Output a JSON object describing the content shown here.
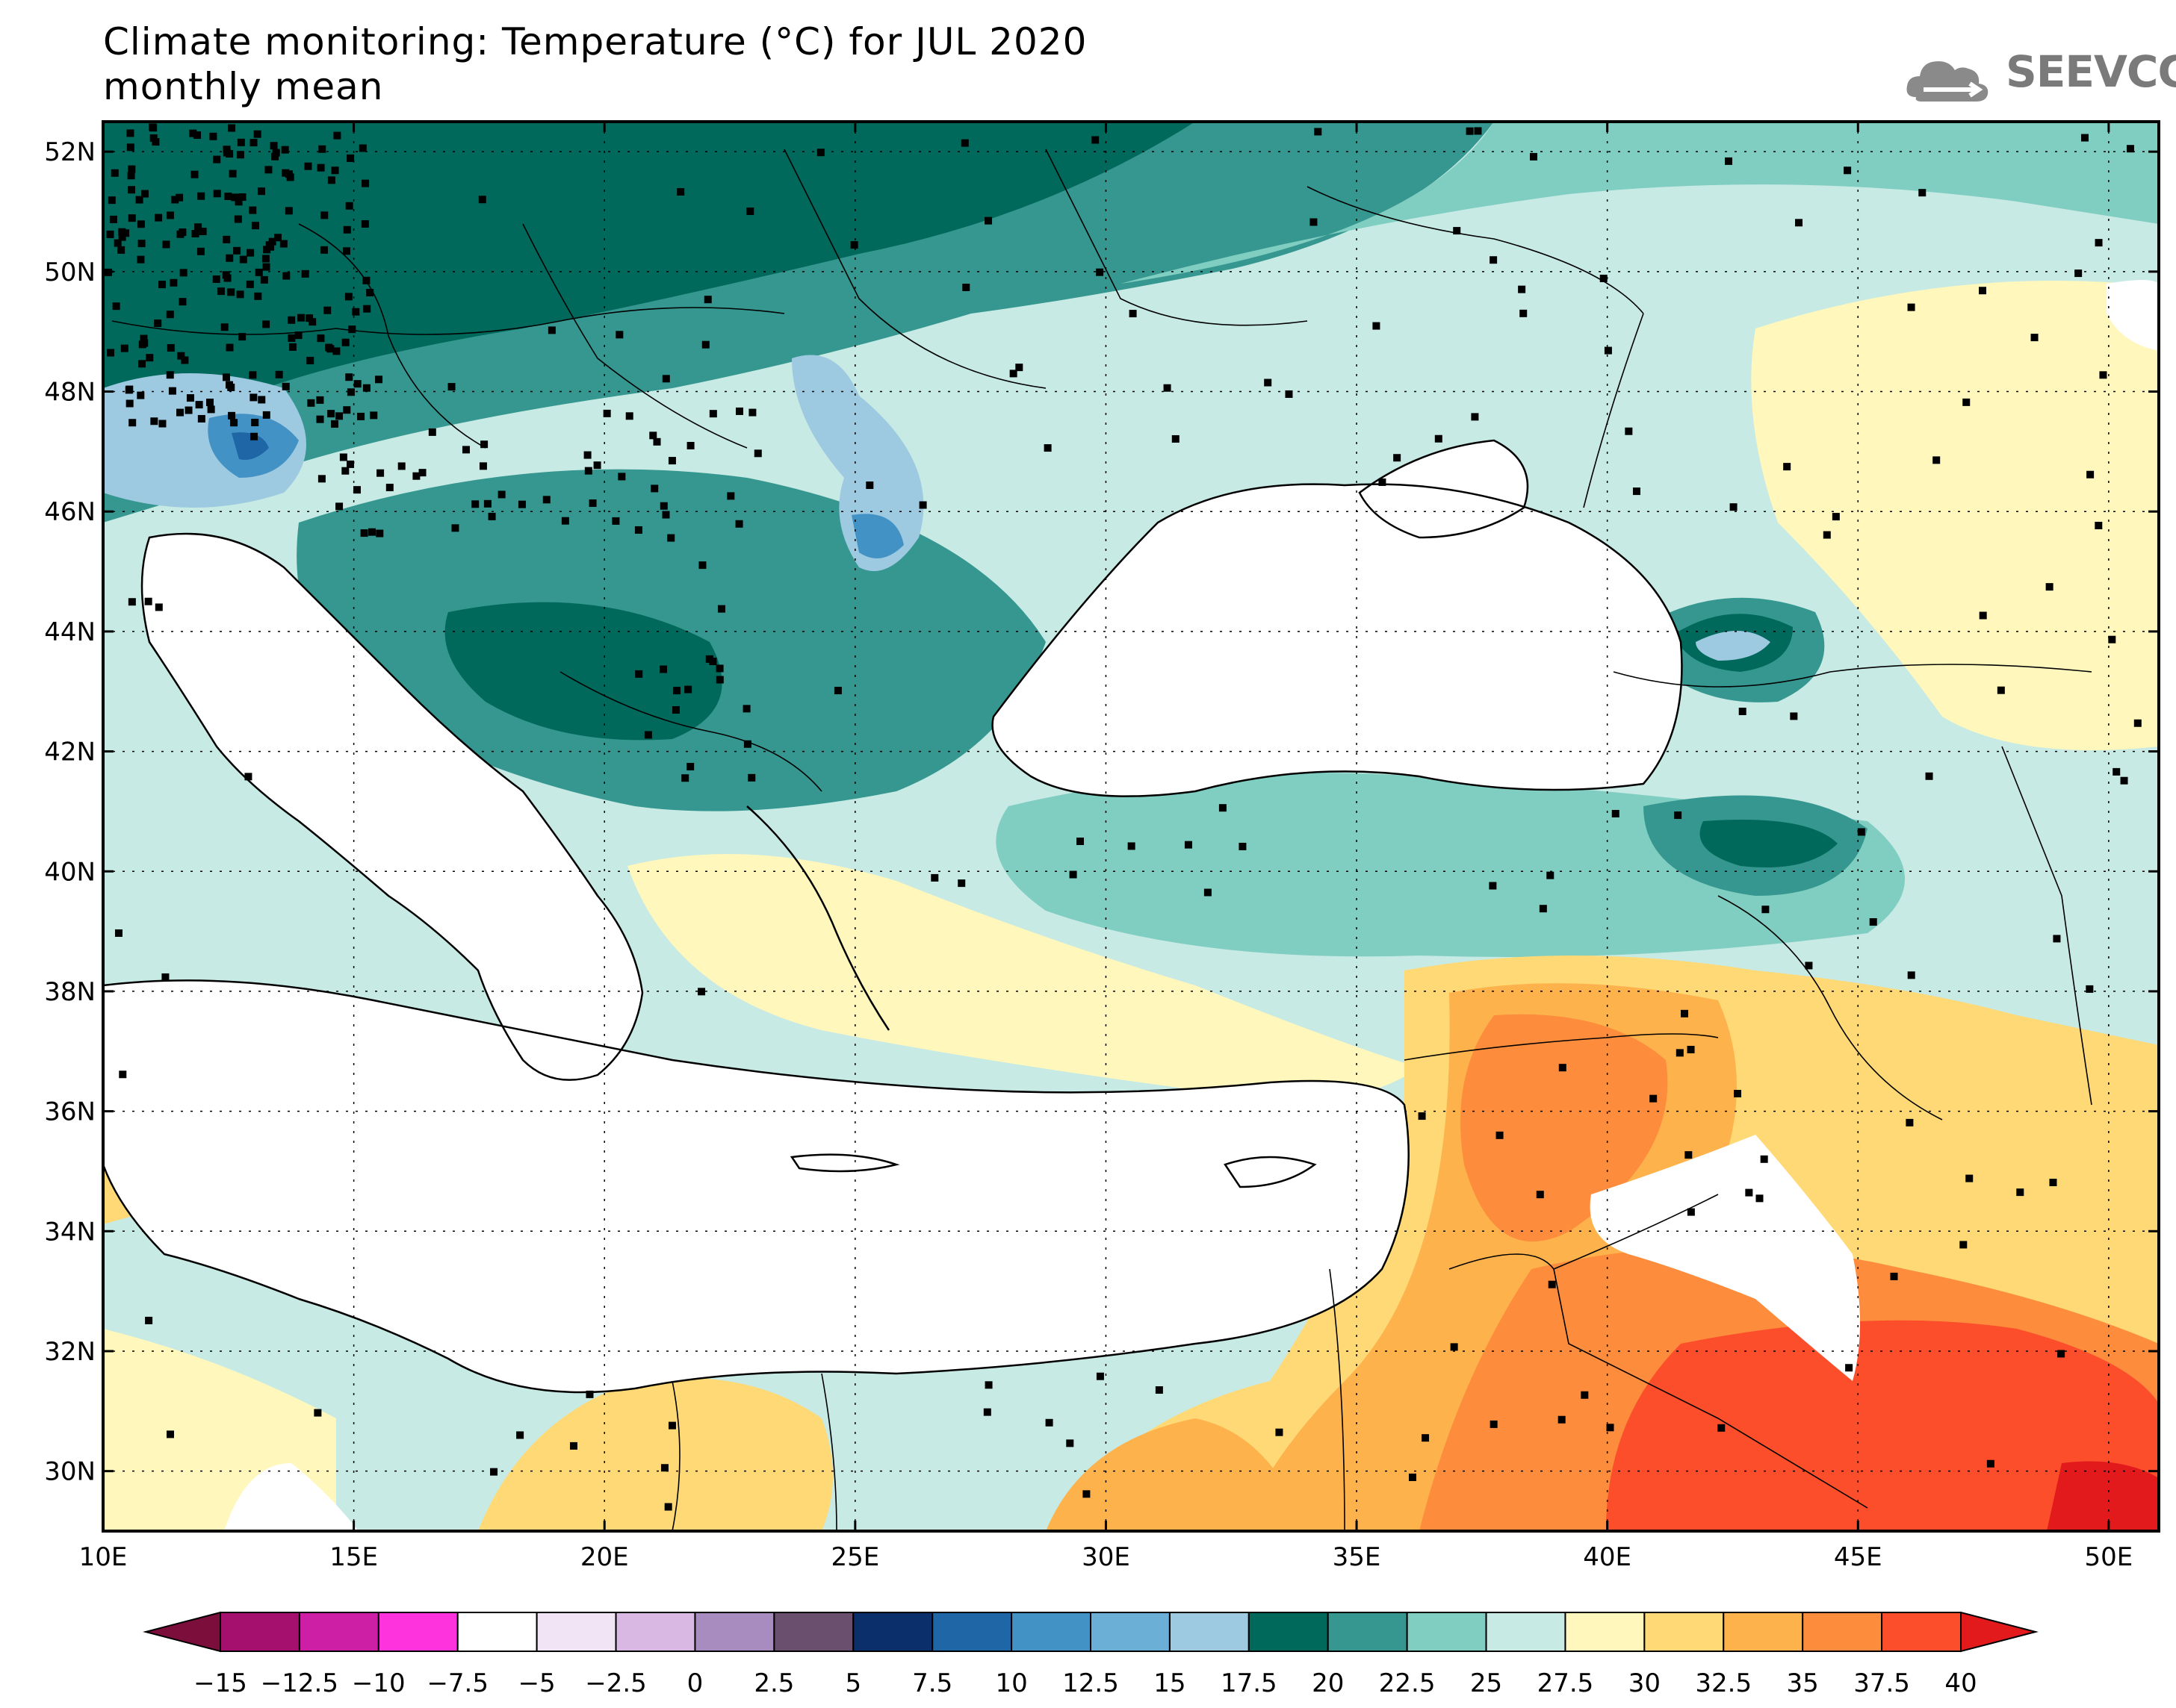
{
  "header": {
    "title": "Climate monitoring: Temperature (°C) for JUL 2020",
    "subtitle": "monthly mean",
    "logo_text": "SEEVCCC"
  },
  "map": {
    "lon_range": [
      10,
      51
    ],
    "lat_range": [
      29,
      52.5
    ],
    "lon_ticks": [
      "10E",
      "15E",
      "20E",
      "25E",
      "30E",
      "35E",
      "40E",
      "45E",
      "50E"
    ],
    "lat_ticks": [
      "52N",
      "50N",
      "48N",
      "46N",
      "44N",
      "42N",
      "40N",
      "38N",
      "36N",
      "34N",
      "32N",
      "30N"
    ],
    "grid": "dotted"
  },
  "colorbar": {
    "labels": [
      "−15",
      "−12.5",
      "−10",
      "−7.5",
      "−5",
      "−2.5",
      "0",
      "2.5",
      "5",
      "7.5",
      "10",
      "12.5",
      "15",
      "17.5",
      "20",
      "22.5",
      "25",
      "27.5",
      "30",
      "32.5",
      "35",
      "37.5",
      "40"
    ],
    "colors": [
      "#7b0e3b",
      "#a5106e",
      "#cc1fa6",
      "#ff33dd",
      "#ffffff",
      "#f1e4f5",
      "#d9b9e3",
      "#a88bbf",
      "#6a4f6e",
      "#0b2f6b",
      "#1e66a5",
      "#4292c6",
      "#6baed6",
      "#9ecae1",
      "#00695c",
      "#35978f",
      "#80cdc1",
      "#c7eae5",
      "#fff7bc",
      "#fed976",
      "#feb24c",
      "#fd8d3c",
      "#fc4e2a",
      "#e31a1c"
    ]
  }
}
